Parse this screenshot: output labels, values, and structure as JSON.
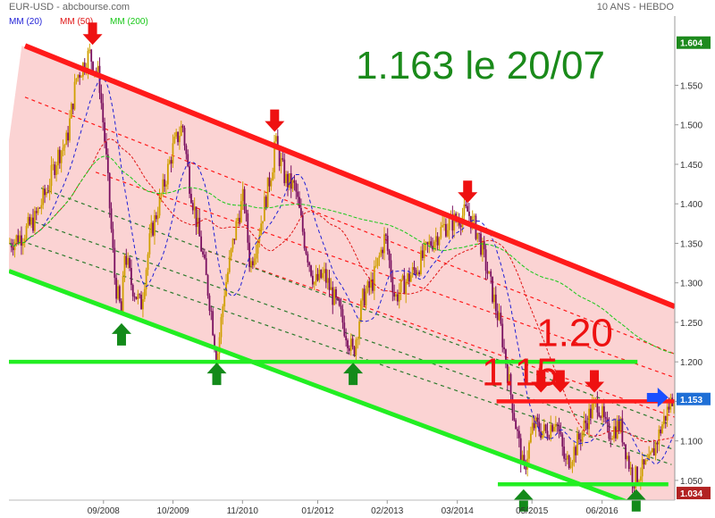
{
  "header": {
    "symbol_source": "EUR-USD - abcbourse.com",
    "period": "10 ANS - HEBDO"
  },
  "legend": [
    {
      "label": "MM (20)",
      "color": "#1f1fd6"
    },
    {
      "label": "MM (50)",
      "color": "#e01515"
    },
    {
      "label": "MM (200)",
      "color": "#18c818"
    }
  ],
  "colors": {
    "up": "#d0a000",
    "down": "#7a1060",
    "channel_fill": "#fbd3d3",
    "resistance": "#ff1a1a",
    "support": "#22ee22",
    "arrow_red": "#ee1111",
    "arrow_green": "#138a1a",
    "arrow_blue": "#1a4fff",
    "title": "#1a8a1a",
    "label_red": "#ee1111"
  },
  "chart_data": {
    "type": "candlestick",
    "title": "1.163 le 20/07",
    "ylim": [
      1.025,
      1.615
    ],
    "xlim": [
      2007.2,
      2017.55
    ],
    "y_ticks": [
      1.05,
      1.1,
      1.15,
      1.2,
      1.25,
      1.3,
      1.35,
      1.4,
      1.45,
      1.5,
      1.55
    ],
    "y_tick_labels": [
      "1.050",
      "1.100",
      "1.150",
      "1.200",
      "1.250",
      "1.300",
      "1.350",
      "1.400",
      "1.450",
      "1.500",
      "1.550"
    ],
    "y_badges": [
      {
        "value": 1.604,
        "label": "1.604",
        "color": "#1d8a1d"
      },
      {
        "value": 1.153,
        "label": "1.153",
        "color": "#1f6fd6"
      },
      {
        "value": 1.034,
        "label": "1.034",
        "color": "#b22222"
      }
    ],
    "x_ticks": [
      {
        "x": 2008.67,
        "label": "09/2008"
      },
      {
        "x": 2009.75,
        "label": "10/2009"
      },
      {
        "x": 2010.83,
        "label": "11/2010"
      },
      {
        "x": 2012.0,
        "label": "01/2012"
      },
      {
        "x": 2013.08,
        "label": "02/2013"
      },
      {
        "x": 2014.17,
        "label": "03/2014"
      },
      {
        "x": 2015.33,
        "label": "05/2015"
      },
      {
        "x": 2016.42,
        "label": "06/2016"
      }
    ],
    "price_path": [
      [
        2007.2,
        1.35
      ],
      [
        2007.4,
        1.36
      ],
      [
        2007.6,
        1.38
      ],
      [
        2007.8,
        1.42
      ],
      [
        2007.95,
        1.46
      ],
      [
        2008.1,
        1.48
      ],
      [
        2008.25,
        1.56
      ],
      [
        2008.45,
        1.59
      ],
      [
        2008.6,
        1.56
      ],
      [
        2008.7,
        1.47
      ],
      [
        2008.85,
        1.3
      ],
      [
        2008.95,
        1.26
      ],
      [
        2009.0,
        1.34
      ],
      [
        2009.1,
        1.3
      ],
      [
        2009.25,
        1.27
      ],
      [
        2009.4,
        1.36
      ],
      [
        2009.6,
        1.42
      ],
      [
        2009.75,
        1.47
      ],
      [
        2009.9,
        1.5
      ],
      [
        2010.0,
        1.43
      ],
      [
        2010.2,
        1.34
      ],
      [
        2010.35,
        1.26
      ],
      [
        2010.43,
        1.2
      ],
      [
        2010.55,
        1.29
      ],
      [
        2010.75,
        1.38
      ],
      [
        2010.85,
        1.41
      ],
      [
        2010.95,
        1.32
      ],
      [
        2011.1,
        1.37
      ],
      [
        2011.3,
        1.45
      ],
      [
        2011.33,
        1.48
      ],
      [
        2011.5,
        1.43
      ],
      [
        2011.65,
        1.42
      ],
      [
        2011.8,
        1.35
      ],
      [
        2011.95,
        1.3
      ],
      [
        2012.1,
        1.31
      ],
      [
        2012.35,
        1.26
      ],
      [
        2012.55,
        1.21
      ],
      [
        2012.7,
        1.28
      ],
      [
        2012.85,
        1.3
      ],
      [
        2013.05,
        1.36
      ],
      [
        2013.2,
        1.28
      ],
      [
        2013.35,
        1.3
      ],
      [
        2013.55,
        1.32
      ],
      [
        2013.75,
        1.35
      ],
      [
        2013.95,
        1.37
      ],
      [
        2014.15,
        1.38
      ],
      [
        2014.33,
        1.39
      ],
      [
        2014.5,
        1.36
      ],
      [
        2014.65,
        1.31
      ],
      [
        2014.85,
        1.24
      ],
      [
        2015.0,
        1.16
      ],
      [
        2015.2,
        1.06
      ],
      [
        2015.35,
        1.12
      ],
      [
        2015.55,
        1.11
      ],
      [
        2015.7,
        1.13
      ],
      [
        2015.85,
        1.07
      ],
      [
        2016.0,
        1.09
      ],
      [
        2016.2,
        1.13
      ],
      [
        2016.35,
        1.15
      ],
      [
        2016.5,
        1.11
      ],
      [
        2016.7,
        1.12
      ],
      [
        2016.9,
        1.05
      ],
      [
        2017.0,
        1.06
      ],
      [
        2017.15,
        1.07
      ],
      [
        2017.35,
        1.12
      ],
      [
        2017.55,
        1.163
      ]
    ],
    "channel": {
      "upper": [
        [
          2007.4,
          1.6
        ],
        [
          2017.55,
          1.27
        ]
      ],
      "lower_left_x": 2007.2
    },
    "resistance_line": {
      "points": [
        [
          2007.45,
          1.6
        ],
        [
          2017.55,
          1.27
        ]
      ],
      "color": "#ff1a1a"
    },
    "support_line": {
      "points": [
        [
          2007.2,
          1.315
        ],
        [
          2016.9,
          1.02
        ]
      ],
      "color": "#22ee22"
    },
    "dashed_red": [
      {
        "points": [
          [
            2007.45,
            1.535
          ],
          [
            2017.55,
            1.21
          ]
        ]
      },
      {
        "points": [
          [
            2008.55,
            1.44
          ],
          [
            2017.55,
            1.18
          ]
        ]
      },
      {
        "points": [
          [
            2010.3,
            1.34
          ],
          [
            2017.55,
            1.13
          ]
        ]
      }
    ],
    "dashed_green": [
      {
        "points": [
          [
            2007.7,
            1.42
          ],
          [
            2017.5,
            1.12
          ]
        ]
      },
      {
        "points": [
          [
            2007.5,
            1.38
          ],
          [
            2017.5,
            1.09
          ]
        ]
      },
      {
        "points": [
          [
            2007.5,
            1.35
          ],
          [
            2017.5,
            1.07
          ]
        ]
      }
    ],
    "horizontal_levels": [
      {
        "label": "1.20",
        "value": 1.2,
        "color": "#22ee22",
        "x_start": 2007.2,
        "x_end": 2016.97
      },
      {
        "label": "1.15",
        "value": 1.15,
        "color": "#ff1a1a",
        "x_start": 2014.78,
        "x_end": 2017.55
      },
      {
        "label": "",
        "value": 1.045,
        "color": "#22ee22",
        "x_start": 2014.8,
        "x_end": 2017.45
      }
    ],
    "text_annotations": [
      {
        "text": "1.20",
        "x": 2015.4,
        "y": 1.22
      },
      {
        "text": "1.15",
        "x": 2014.55,
        "y": 1.17
      }
    ],
    "arrows_down_red": [
      {
        "x": 2008.5,
        "y": 1.6
      },
      {
        "x": 2011.33,
        "y": 1.49
      },
      {
        "x": 2014.33,
        "y": 1.4
      },
      {
        "x": 2015.47,
        "y": 1.16
      },
      {
        "x": 2015.77,
        "y": 1.16
      },
      {
        "x": 2016.3,
        "y": 1.16
      }
    ],
    "arrows_up_green": [
      {
        "x": 2008.95,
        "y": 1.25
      },
      {
        "x": 2010.43,
        "y": 1.2
      },
      {
        "x": 2012.55,
        "y": 1.2
      },
      {
        "x": 2015.2,
        "y": 1.04
      },
      {
        "x": 2016.95,
        "y": 1.04
      }
    ],
    "arrow_right_blue": {
      "x": 2017.45,
      "y": 1.155
    }
  }
}
